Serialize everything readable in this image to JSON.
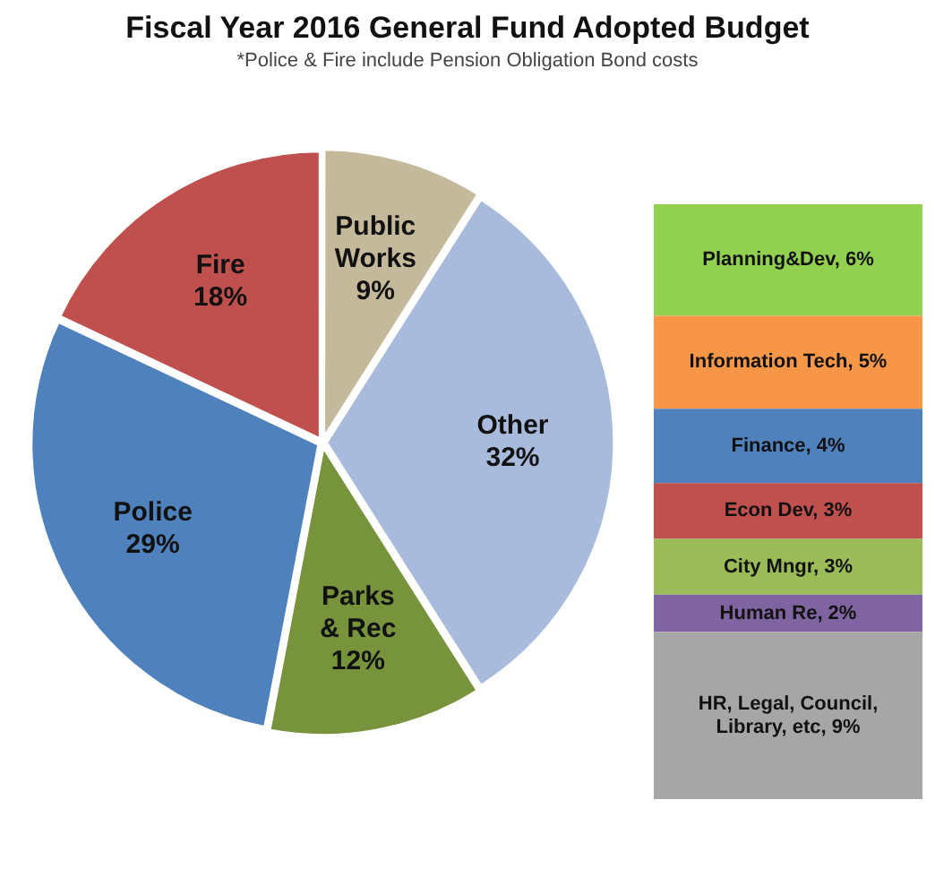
{
  "chart_data": [
    {
      "type": "pie",
      "title": "Fiscal Year 2016 General Fund Adopted Budget",
      "subtitle": "*Police & Fire include Pension Obligation Bond costs",
      "categories": [
        "Public Works",
        "Other",
        "Parks & Rec",
        "Police",
        "Fire"
      ],
      "values": [
        9,
        32,
        12,
        29,
        18
      ],
      "value_labels": [
        "9%",
        "32%",
        "12%",
        "29%",
        "18%"
      ],
      "colors": [
        "#c4b99a",
        "#a8bbdc",
        "#77933c",
        "#4f81bd",
        "#c0504d"
      ],
      "legend": false
    },
    {
      "type": "bar",
      "stacked": true,
      "categories": [
        null
      ],
      "legend": false,
      "series": [
        {
          "color": "#a6a6a6",
          "values": [
            9
          ],
          "value_labels": [
            "HR, Legal, Council, Library, etc, 9%"
          ]
        },
        {
          "color": "#8064a2",
          "values": [
            2
          ],
          "value_labels": [
            "Human Re, 2%"
          ]
        },
        {
          "color": "#9bbb59",
          "values": [
            3
          ],
          "value_labels": [
            "City Mngr, 3%"
          ]
        },
        {
          "color": "#c0504d",
          "values": [
            3
          ],
          "value_labels": [
            "Econ Dev, 3%"
          ]
        },
        {
          "color": "#4f81bd",
          "values": [
            4
          ],
          "value_labels": [
            "Finance, 4%"
          ]
        },
        {
          "color": "#f79646",
          "values": [
            5
          ],
          "value_labels": [
            "Information Tech, 5%"
          ]
        },
        {
          "color": "#92d050",
          "values": [
            6
          ],
          "value_labels": [
            "Planning&Dev, 6%"
          ]
        }
      ]
    }
  ]
}
